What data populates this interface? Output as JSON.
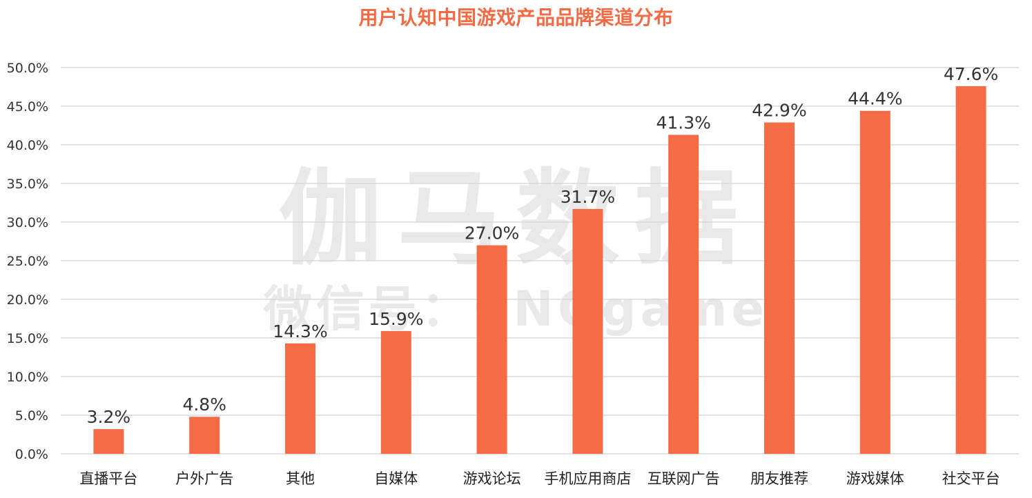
{
  "title": "用户认知中国游戏产品品牌渠道分布",
  "watermark": {
    "main": "伽马数据",
    "sub": "微信号：CNGgame"
  },
  "colors": {
    "bar": "#f46b45",
    "title": "#f26b45",
    "grid": "#d9d9d9",
    "watermark": "#e9e9e9"
  },
  "chart_data": {
    "type": "bar",
    "title": "用户认知中国游戏产品品牌渠道分布",
    "xlabel": "",
    "ylabel": "",
    "categories": [
      "直播平台",
      "户外广告",
      "其他",
      "自媒体",
      "游戏论坛",
      "手机应用商店",
      "互联网广告",
      "朋友推荐",
      "游戏媒体",
      "社交平台"
    ],
    "values": [
      3.2,
      4.8,
      14.3,
      15.9,
      27.0,
      31.7,
      41.3,
      42.9,
      44.4,
      47.6
    ],
    "value_labels": [
      "3.2%",
      "4.8%",
      "14.3%",
      "15.9%",
      "27.0%",
      "31.7%",
      "41.3%",
      "42.9%",
      "44.4%",
      "47.6%"
    ],
    "ylim": [
      0,
      50
    ],
    "yticks": [
      0,
      5,
      10,
      15,
      20,
      25,
      30,
      35,
      40,
      45,
      50
    ],
    "ytick_labels": [
      "0.0%",
      "5.0%",
      "10.0%",
      "15.0%",
      "20.0%",
      "25.0%",
      "30.0%",
      "35.0%",
      "40.0%",
      "45.0%",
      "50.0%"
    ],
    "grid": true,
    "legend": "none"
  }
}
